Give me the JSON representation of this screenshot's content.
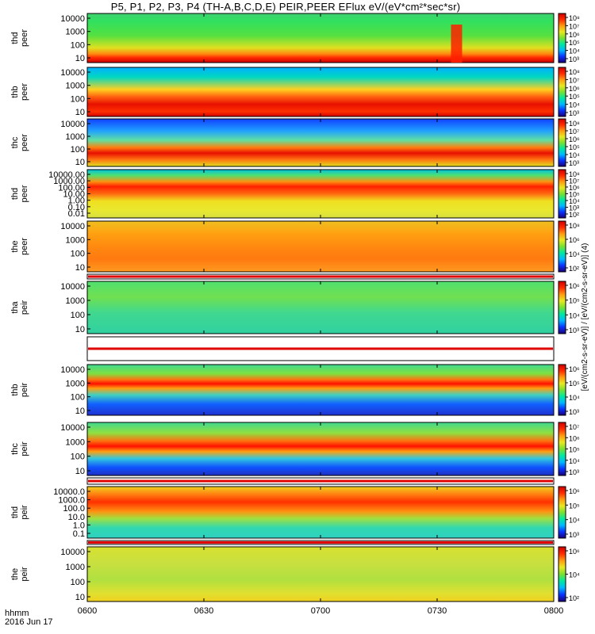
{
  "figure": {
    "title": "P5, P1, P2, P3, P4 (TH-A,B,C,D,E) PEIR,PEER EFlux eV/(eV*cm²*sec*sr)",
    "date_label": "2016 Jun 17",
    "time_label": "hhmm",
    "colorbar_unit_label": "[eV/(cm2-s-sr-eV)] / [eV/(cm2-s-sr-eV)] (4)"
  },
  "chart_data": [
    {
      "type": "heatmap",
      "panel": "thd peer",
      "ylabel": [
        "thd",
        "peer"
      ],
      "y_ticks": [
        "10000",
        "1000",
        "100",
        "10"
      ],
      "x_ticks": [
        "0600",
        "0630",
        "0700",
        "0730",
        "0800"
      ],
      "colorbar_ticks": [
        "10⁸",
        "10⁷",
        "10⁶",
        "10⁵",
        "10⁴",
        "10³"
      ],
      "features": [
        {
          "time": "0735",
          "note": "high flux burst"
        }
      ]
    },
    {
      "type": "heatmap",
      "panel": "thb peer",
      "ylabel": [
        "thb",
        "peer"
      ],
      "y_ticks": [
        "10000",
        "1000",
        "100",
        "10"
      ],
      "colorbar_ticks": [
        "10⁸",
        "10⁷",
        "10⁶",
        "10⁵",
        "10⁴",
        "10³"
      ]
    },
    {
      "type": "heatmap",
      "panel": "thc peer",
      "ylabel": [
        "thc",
        "peer"
      ],
      "y_ticks": [
        "10000",
        "1000",
        "100",
        "10"
      ],
      "colorbar_ticks": [
        "10⁸",
        "10⁷",
        "10⁶",
        "10⁵",
        "10⁴",
        "10³"
      ]
    },
    {
      "type": "heatmap",
      "panel": "thd peer",
      "ylabel": [
        "thd",
        "peer"
      ],
      "y_ticks": [
        "10000.00",
        "1000.00",
        "100.00",
        "10.00",
        "1.00",
        "0.10",
        "0.01"
      ],
      "colorbar_ticks": [
        "10⁸",
        "10⁷",
        "10⁶",
        "10⁵",
        "10⁴",
        "10³",
        "10²"
      ]
    },
    {
      "type": "heatmap",
      "panel": "the peer",
      "ylabel": [
        "the",
        "peer"
      ],
      "y_ticks": [
        "10000",
        "1000",
        "100",
        "10"
      ],
      "colorbar_ticks": [
        "10⁸",
        "10⁶",
        "10⁴",
        "10²"
      ]
    },
    {
      "type": "heatmap",
      "panel": "tha peir",
      "ylabel": [
        "tha",
        "peir"
      ],
      "y_ticks": [
        "10000",
        "1000",
        "100",
        "10"
      ],
      "colorbar_ticks": [
        "10⁶",
        "10⁵",
        "10⁴",
        "10³"
      ]
    },
    {
      "type": "heatmap",
      "panel": "thb peir",
      "ylabel": [
        "thb",
        "peir"
      ],
      "y_ticks": [
        "10000",
        "1000",
        "100",
        "10"
      ],
      "colorbar_ticks": [
        "10⁶",
        "10⁵",
        "10⁴",
        "10³"
      ]
    },
    {
      "type": "heatmap",
      "panel": "thc peir",
      "ylabel": [
        "thc",
        "peir"
      ],
      "y_ticks": [
        "10000",
        "1000",
        "100",
        "10"
      ],
      "colorbar_ticks": [
        "10⁷",
        "10⁶",
        "10⁵",
        "10⁴",
        "10³"
      ]
    },
    {
      "type": "heatmap",
      "panel": "thd peir",
      "ylabel": [
        "thd",
        "peir"
      ],
      "y_ticks": [
        "10000.0",
        "1000.0",
        "100.0",
        "10.0",
        "1.0",
        "0.1"
      ],
      "colorbar_ticks": [
        "10⁶",
        "10⁵",
        "10⁴",
        "10³"
      ]
    },
    {
      "type": "heatmap",
      "panel": "the peir",
      "ylabel": [
        "the",
        "peir"
      ],
      "y_ticks": [
        "10000",
        "1000",
        "100",
        "10"
      ],
      "colorbar_ticks": [
        "10⁶",
        "10⁴",
        "10²"
      ]
    }
  ]
}
